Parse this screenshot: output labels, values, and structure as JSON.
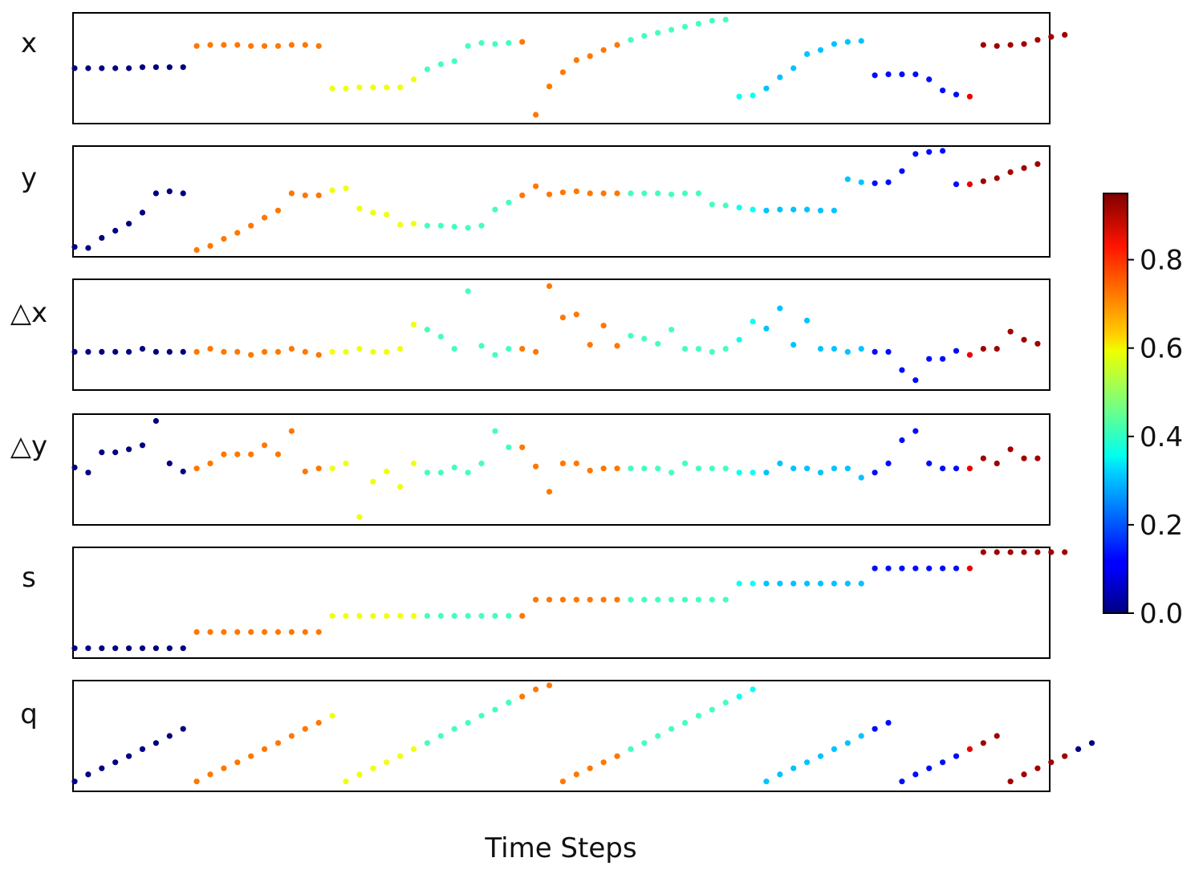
{
  "chart_data": {
    "type": "scatter",
    "xlabel": "Time Steps",
    "panels": [
      {
        "name": "x",
        "label": "x",
        "values": [
          0.5,
          0.5,
          0.5,
          0.5,
          0.5,
          0.51,
          0.51,
          0.51,
          0.51,
          0.72,
          0.73,
          0.73,
          0.73,
          0.72,
          0.72,
          0.72,
          0.73,
          0.73,
          0.72,
          0.3,
          0.3,
          0.31,
          0.31,
          0.31,
          0.31,
          0.39,
          0.49,
          0.54,
          0.57,
          0.72,
          0.75,
          0.74,
          0.75,
          0.76,
          0.04,
          0.32,
          0.46,
          0.58,
          0.62,
          0.68,
          0.73,
          0.78,
          0.82,
          0.85,
          0.88,
          0.91,
          0.94,
          0.97,
          0.98,
          0.22,
          0.23,
          0.3,
          0.41,
          0.5,
          0.64,
          0.68,
          0.74,
          0.76,
          0.77,
          0.43,
          0.44,
          0.44,
          0.44,
          0.39,
          0.28,
          0.24,
          0.22,
          0.73,
          0.72,
          0.73,
          0.74,
          0.78,
          0.81,
          0.83
        ]
      },
      {
        "name": "y",
        "label": "y",
        "values": [
          0.05,
          0.04,
          0.14,
          0.21,
          0.28,
          0.39,
          0.58,
          0.6,
          0.58,
          0.02,
          0.06,
          0.13,
          0.19,
          0.26,
          0.34,
          0.41,
          0.58,
          0.56,
          0.56,
          0.61,
          0.63,
          0.43,
          0.39,
          0.37,
          0.27,
          0.28,
          0.26,
          0.26,
          0.25,
          0.24,
          0.26,
          0.42,
          0.49,
          0.56,
          0.65,
          0.57,
          0.59,
          0.6,
          0.58,
          0.58,
          0.58,
          0.58,
          0.58,
          0.58,
          0.57,
          0.58,
          0.58,
          0.47,
          0.46,
          0.44,
          0.42,
          0.41,
          0.42,
          0.42,
          0.42,
          0.41,
          0.41,
          0.72,
          0.69,
          0.68,
          0.69,
          0.8,
          0.97,
          0.99,
          1.0,
          0.67,
          0.67,
          0.7,
          0.73,
          0.79,
          0.83,
          0.87
        ]
      },
      {
        "name": "delta_x",
        "label": "△x",
        "values": [
          0.33,
          0.33,
          0.33,
          0.33,
          0.33,
          0.36,
          0.33,
          0.33,
          0.33,
          0.33,
          0.36,
          0.33,
          0.33,
          0.3,
          0.33,
          0.33,
          0.36,
          0.33,
          0.3,
          0.33,
          0.33,
          0.36,
          0.33,
          0.33,
          0.36,
          0.6,
          0.55,
          0.48,
          0.36,
          0.93,
          0.39,
          0.3,
          0.36,
          0.36,
          0.33,
          0.98,
          0.67,
          0.7,
          0.4,
          0.59,
          0.39,
          0.49,
          0.46,
          0.41,
          0.55,
          0.36,
          0.36,
          0.33,
          0.36,
          0.45,
          0.63,
          0.56,
          0.76,
          0.4,
          0.64,
          0.36,
          0.36,
          0.33,
          0.36,
          0.33,
          0.33,
          0.15,
          0.05,
          0.26,
          0.26,
          0.34,
          0.3,
          0.36,
          0.36,
          0.53,
          0.45,
          0.41
        ]
      },
      {
        "name": "delta_y",
        "label": "△y",
        "values": [
          0.52,
          0.47,
          0.67,
          0.67,
          0.7,
          0.74,
          0.98,
          0.56,
          0.48,
          0.51,
          0.56,
          0.65,
          0.65,
          0.65,
          0.74,
          0.65,
          0.88,
          0.48,
          0.51,
          0.51,
          0.56,
          0.03,
          0.38,
          0.48,
          0.33,
          0.56,
          0.47,
          0.47,
          0.52,
          0.47,
          0.56,
          0.88,
          0.72,
          0.72,
          0.53,
          0.28,
          0.56,
          0.56,
          0.49,
          0.51,
          0.51,
          0.51,
          0.51,
          0.51,
          0.47,
          0.56,
          0.51,
          0.51,
          0.51,
          0.47,
          0.47,
          0.47,
          0.56,
          0.51,
          0.51,
          0.47,
          0.51,
          0.51,
          0.42,
          0.47,
          0.56,
          0.79,
          0.88,
          0.56,
          0.51,
          0.51,
          0.51,
          0.61,
          0.56,
          0.7,
          0.61,
          0.61
        ]
      },
      {
        "name": "s",
        "label": "s",
        "values": [
          0.05,
          0.05,
          0.05,
          0.05,
          0.05,
          0.05,
          0.05,
          0.05,
          0.05,
          0.21,
          0.21,
          0.21,
          0.21,
          0.21,
          0.21,
          0.21,
          0.21,
          0.21,
          0.21,
          0.37,
          0.37,
          0.37,
          0.37,
          0.37,
          0.37,
          0.37,
          0.37,
          0.37,
          0.37,
          0.37,
          0.37,
          0.37,
          0.37,
          0.37,
          0.53,
          0.53,
          0.53,
          0.53,
          0.53,
          0.53,
          0.53,
          0.53,
          0.53,
          0.53,
          0.53,
          0.53,
          0.53,
          0.53,
          0.53,
          0.69,
          0.69,
          0.69,
          0.69,
          0.69,
          0.69,
          0.69,
          0.69,
          0.69,
          0.69,
          0.84,
          0.84,
          0.84,
          0.84,
          0.84,
          0.84,
          0.84,
          0.84,
          1.0,
          1.0,
          1.0,
          1.0,
          1.0,
          1.0,
          1.0
        ]
      },
      {
        "name": "q",
        "label": "q",
        "values": [
          0.05,
          0.12,
          0.18,
          0.24,
          0.3,
          0.37,
          0.43,
          0.5,
          0.57,
          0.05,
          0.12,
          0.18,
          0.24,
          0.3,
          0.37,
          0.43,
          0.5,
          0.57,
          0.63,
          0.7,
          0.05,
          0.12,
          0.18,
          0.24,
          0.3,
          0.37,
          0.43,
          0.5,
          0.57,
          0.63,
          0.7,
          0.76,
          0.83,
          0.89,
          0.96,
          1.0,
          0.05,
          0.12,
          0.18,
          0.24,
          0.3,
          0.37,
          0.43,
          0.5,
          0.57,
          0.63,
          0.7,
          0.76,
          0.83,
          0.89,
          0.96,
          0.05,
          0.12,
          0.18,
          0.24,
          0.3,
          0.37,
          0.43,
          0.5,
          0.57,
          0.63,
          0.05,
          0.12,
          0.18,
          0.24,
          0.3,
          0.37,
          0.43,
          0.5,
          0.05,
          0.12,
          0.18,
          0.24,
          0.3,
          0.37,
          0.43
        ]
      }
    ],
    "time_values": [
      0.0,
      0.0,
      0.0,
      0.0,
      0.0,
      0.0,
      0.0,
      0.0,
      0.0,
      0.72,
      0.72,
      0.72,
      0.72,
      0.72,
      0.72,
      0.72,
      0.72,
      0.72,
      0.72,
      0.58,
      0.58,
      0.58,
      0.58,
      0.58,
      0.58,
      0.58,
      0.42,
      0.42,
      0.42,
      0.42,
      0.42,
      0.42,
      0.42,
      0.72,
      0.72,
      0.72,
      0.72,
      0.72,
      0.72,
      0.72,
      0.72,
      0.42,
      0.42,
      0.42,
      0.42,
      0.42,
      0.42,
      0.42,
      0.42,
      0.37,
      0.37,
      0.3,
      0.3,
      0.3,
      0.3,
      0.3,
      0.3,
      0.3,
      0.3,
      0.13,
      0.13,
      0.13,
      0.13,
      0.13,
      0.13,
      0.13,
      0.85,
      0.92,
      0.92,
      0.92,
      0.92,
      0.92,
      0.92,
      0.92
    ],
    "colorbar": {
      "colormap": "jet",
      "ticks": [
        "0.0",
        "0.2",
        "0.4",
        "0.6",
        "0.8"
      ],
      "tick_values": [
        0.0,
        0.2,
        0.4,
        0.6,
        0.8
      ],
      "range": [
        0,
        0.95
      ]
    },
    "grid": false
  }
}
